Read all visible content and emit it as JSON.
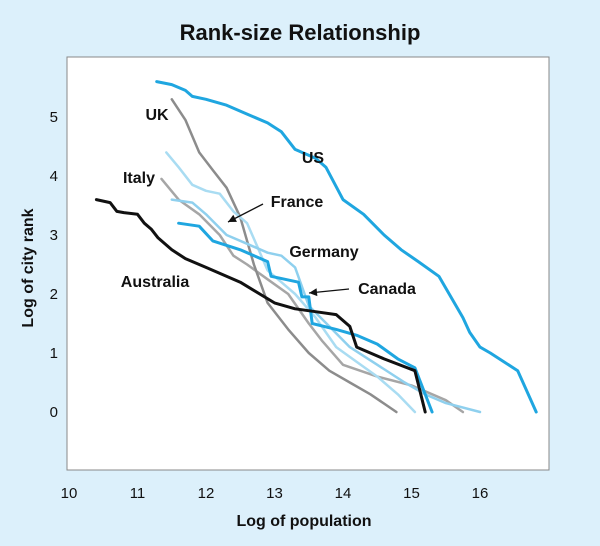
{
  "chart_data": {
    "type": "line",
    "title": "Rank-size Relationship",
    "xlabel": "Log of population",
    "ylabel": "Log of city rank",
    "xlim": [
      10,
      17
    ],
    "ylim": [
      -1,
      6
    ],
    "xticks": [
      10,
      11,
      12,
      13,
      14,
      15,
      16
    ],
    "yticks": [
      0,
      1,
      2,
      3,
      4,
      5
    ],
    "grid": false,
    "colors": {
      "background": "#dcf0fb",
      "plot": "#ffffff",
      "us": "#1fa6e0",
      "uk": "#8c8c8c",
      "italy": "#a6a6a6",
      "france": "#a9dcf2",
      "germany": "#8fd0ee",
      "canada": "#1fa6e0",
      "australia": "#111111"
    },
    "series": [
      {
        "name": "US",
        "key": "us",
        "x": [
          11.28,
          11.5,
          11.7,
          11.8,
          12.0,
          12.3,
          12.6,
          12.9,
          13.1,
          13.3,
          13.6,
          13.75,
          14.0,
          14.3,
          14.6,
          14.85,
          15.1,
          15.4,
          15.55,
          15.75,
          15.85,
          16.0,
          16.15,
          16.35,
          16.55,
          16.82
        ],
        "y": [
          5.6,
          5.55,
          5.45,
          5.35,
          5.3,
          5.2,
          5.05,
          4.9,
          4.75,
          4.45,
          4.3,
          4.15,
          3.6,
          3.35,
          3.0,
          2.75,
          2.55,
          2.3,
          2.0,
          1.6,
          1.35,
          1.1,
          1.0,
          0.85,
          0.7,
          0.0
        ]
      },
      {
        "name": "UK",
        "key": "uk",
        "x": [
          11.5,
          11.7,
          11.9,
          12.1,
          12.3,
          12.5,
          12.7,
          12.9,
          13.2,
          13.5,
          13.8,
          14.1,
          14.4,
          14.78
        ],
        "y": [
          5.3,
          4.95,
          4.4,
          4.1,
          3.8,
          3.3,
          2.5,
          1.85,
          1.4,
          1.0,
          0.7,
          0.5,
          0.3,
          0.0
        ]
      },
      {
        "name": "Italy",
        "key": "italy",
        "x": [
          11.35,
          11.6,
          11.9,
          12.2,
          12.4,
          12.6,
          12.9,
          13.2,
          13.5,
          13.7,
          14.0,
          14.5,
          15.0,
          15.5,
          15.75
        ],
        "y": [
          3.95,
          3.6,
          3.35,
          3.0,
          2.65,
          2.5,
          2.25,
          2.0,
          1.5,
          1.2,
          0.8,
          0.6,
          0.45,
          0.2,
          0.0
        ]
      },
      {
        "name": "France",
        "key": "france",
        "x": [
          11.42,
          11.6,
          11.8,
          12.0,
          12.2,
          12.4,
          12.6,
          12.75,
          12.9,
          13.1,
          13.3,
          13.6,
          13.9,
          14.2,
          14.5,
          14.8,
          15.05
        ],
        "y": [
          4.4,
          4.15,
          3.85,
          3.75,
          3.7,
          3.4,
          3.2,
          2.8,
          2.4,
          2.2,
          2.0,
          1.6,
          1.1,
          0.85,
          0.6,
          0.3,
          0.0
        ]
      },
      {
        "name": "Germany",
        "key": "germany",
        "x": [
          11.5,
          11.8,
          12.0,
          12.3,
          12.6,
          12.9,
          13.1,
          13.3,
          13.5,
          13.8,
          14.1,
          14.5,
          14.9,
          15.2,
          15.5,
          16.0
        ],
        "y": [
          3.6,
          3.55,
          3.35,
          3.0,
          2.85,
          2.7,
          2.65,
          2.45,
          1.8,
          1.45,
          1.1,
          0.8,
          0.5,
          0.3,
          0.15,
          0.0
        ]
      },
      {
        "name": "Canada",
        "key": "canada",
        "x": [
          11.6,
          11.9,
          12.1,
          12.5,
          12.9,
          12.95,
          13.35,
          13.4,
          13.5,
          13.55,
          13.9,
          14.2,
          14.5,
          14.8,
          15.05,
          15.3
        ],
        "y": [
          3.2,
          3.15,
          2.9,
          2.75,
          2.55,
          2.3,
          2.2,
          1.95,
          1.95,
          1.5,
          1.4,
          1.3,
          1.15,
          0.9,
          0.75,
          0.0
        ]
      },
      {
        "name": "Australia",
        "key": "australia",
        "x": [
          10.4,
          10.6,
          10.7,
          10.8,
          11.0,
          11.1,
          11.2,
          11.3,
          11.5,
          11.7,
          12.0,
          12.5,
          13.0,
          13.3,
          13.6,
          13.9,
          14.1,
          14.2,
          14.6,
          15.05,
          15.2
        ],
        "y": [
          3.6,
          3.55,
          3.4,
          3.38,
          3.35,
          3.2,
          3.1,
          2.95,
          2.75,
          2.6,
          2.45,
          2.2,
          1.85,
          1.75,
          1.7,
          1.65,
          1.45,
          1.1,
          0.9,
          0.7,
          0.0
        ]
      }
    ],
    "labels": [
      {
        "text": "US",
        "key": "us"
      },
      {
        "text": "UK",
        "key": "uk"
      },
      {
        "text": "Italy",
        "key": "italy"
      },
      {
        "text": "France",
        "key": "france"
      },
      {
        "text": "Germany",
        "key": "germany"
      },
      {
        "text": "Canada",
        "key": "canada"
      },
      {
        "text": "Australia",
        "key": "australia"
      }
    ]
  }
}
